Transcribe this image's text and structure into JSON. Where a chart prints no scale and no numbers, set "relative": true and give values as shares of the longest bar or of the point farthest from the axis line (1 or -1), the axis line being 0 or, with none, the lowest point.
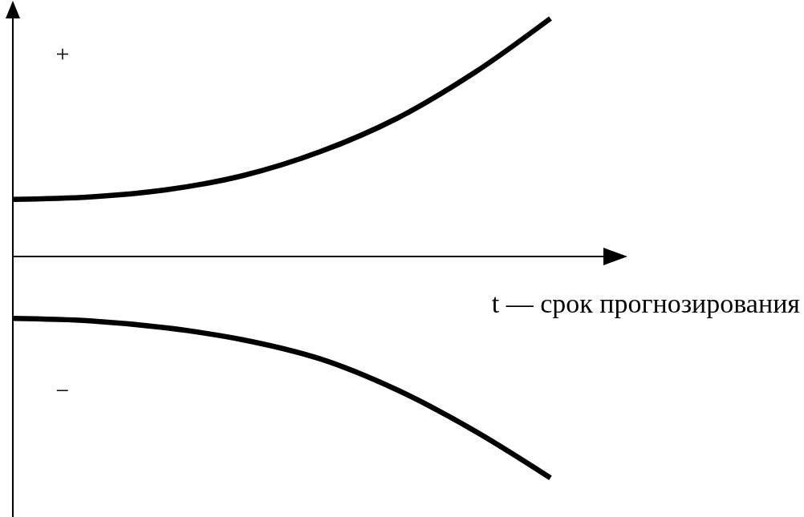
{
  "chart_data": {
    "type": "line",
    "relative": true,
    "categories": [
      null,
      null,
      null,
      null,
      null,
      null,
      null,
      null
    ],
    "series": [
      {
        "color": "#000000",
        "values": [
          0.24,
          0.25,
          0.28,
          0.34,
          0.44,
          0.58,
          0.77,
          1
        ]
      },
      {
        "color": "#000000",
        "values": [
          -0.26,
          -0.27,
          -0.3,
          -0.35,
          -0.43,
          -0.56,
          -0.73,
          -0.93
        ]
      }
    ],
    "xlabel": "t — срок прогнозирования",
    "annotations": [
      "+",
      "−"
    ]
  }
}
